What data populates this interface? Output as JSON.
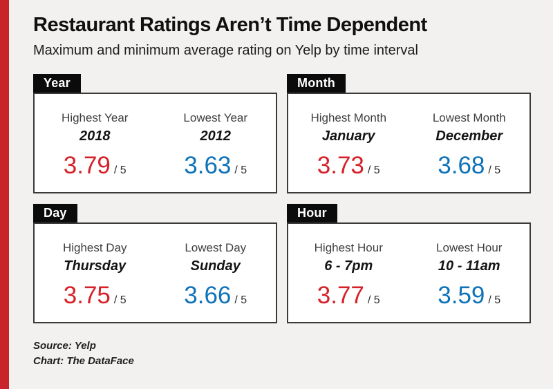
{
  "page": {
    "title": "Restaurant Ratings Aren’t Time Dependent",
    "subtitle": "Maximum and minimum average rating on Yelp by time interval",
    "source_line": "Source: Yelp",
    "credit_line": "Chart: The DataFace"
  },
  "colors": {
    "stripe_red": "#c9242a",
    "accent_red": "#d62128",
    "accent_blue": "#0e72b8",
    "background": "#f3f1ef",
    "tab_bg": "#0b0b0b"
  },
  "panels": [
    {
      "tab": "Year",
      "highest": {
        "label": "Highest Year",
        "value": "2018",
        "rating": "3.79",
        "denominator": "/ 5"
      },
      "lowest": {
        "label": "Lowest Year",
        "value": "2012",
        "rating": "3.63",
        "denominator": "/ 5"
      }
    },
    {
      "tab": "Month",
      "highest": {
        "label": "Highest Month",
        "value": "January",
        "rating": "3.73",
        "denominator": "/ 5"
      },
      "lowest": {
        "label": "Lowest Month",
        "value": "December",
        "rating": "3.68",
        "denominator": "/ 5"
      }
    },
    {
      "tab": "Day",
      "highest": {
        "label": "Highest Day",
        "value": "Thursday",
        "rating": "3.75",
        "denominator": "/ 5"
      },
      "lowest": {
        "label": "Lowest Day",
        "value": "Sunday",
        "rating": "3.66",
        "denominator": "/ 5"
      }
    },
    {
      "tab": "Hour",
      "highest": {
        "label": "Highest Hour",
        "value": "6 - 7pm",
        "rating": "3.77",
        "denominator": "/ 5"
      },
      "lowest": {
        "label": "Lowest Hour",
        "value": "10 - 11am",
        "rating": "3.59",
        "denominator": "/ 5"
      }
    }
  ],
  "chart_data": {
    "type": "table",
    "title": "Restaurant Ratings Aren’t Time Dependent",
    "subtitle": "Maximum and minimum average rating on Yelp by time interval",
    "rating_scale_max": 5,
    "intervals": [
      {
        "interval": "Year",
        "highest": {
          "name": "2018",
          "rating": 3.79
        },
        "lowest": {
          "name": "2012",
          "rating": 3.63
        }
      },
      {
        "interval": "Month",
        "highest": {
          "name": "January",
          "rating": 3.73
        },
        "lowest": {
          "name": "December",
          "rating": 3.68
        }
      },
      {
        "interval": "Day",
        "highest": {
          "name": "Thursday",
          "rating": 3.75
        },
        "lowest": {
          "name": "Sunday",
          "rating": 3.66
        }
      },
      {
        "interval": "Hour",
        "highest": {
          "name": "6 - 7pm",
          "rating": 3.77
        },
        "lowest": {
          "name": "10 - 11am",
          "rating": 3.59
        }
      }
    ],
    "source": "Yelp",
    "credit": "The DataFace",
    "legend": {
      "highest_color": "#d62128",
      "lowest_color": "#0e72b8",
      "position": "none"
    }
  }
}
